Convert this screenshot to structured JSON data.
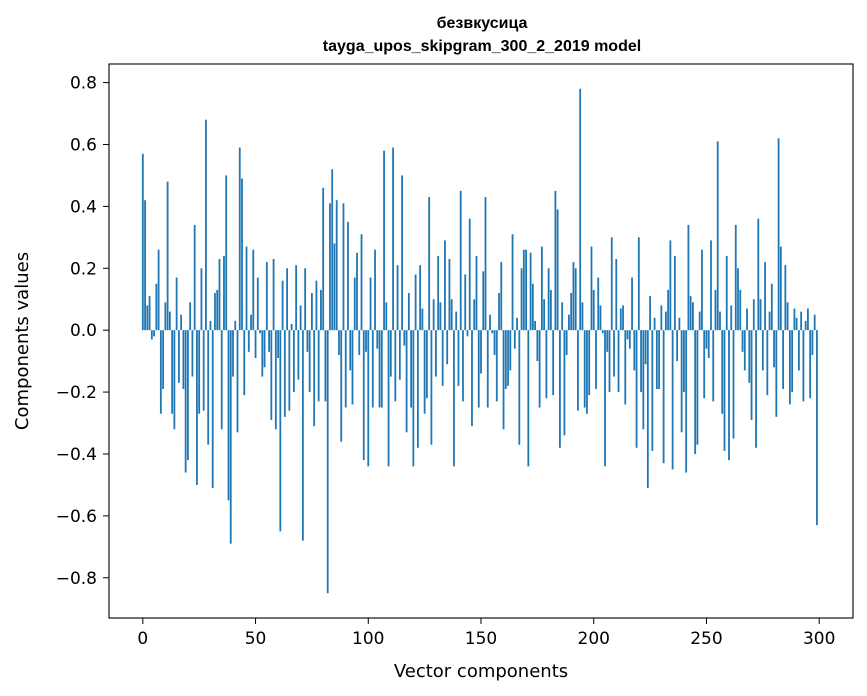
{
  "chart_data": {
    "type": "bar",
    "title": "безвкусица",
    "subtitle": "tayga_upos_skipgram_300_2_2019 model",
    "xlabel": "Vector components",
    "ylabel": "Components values",
    "xlim": [
      -15,
      315
    ],
    "ylim": [
      -0.93,
      0.86
    ],
    "xticks": [
      0,
      50,
      100,
      150,
      200,
      250,
      300
    ],
    "yticks": [
      -0.8,
      -0.6,
      -0.4,
      -0.2,
      0.0,
      0.2,
      0.4,
      0.6,
      0.8
    ],
    "xtick_labels": [
      "0",
      "50",
      "100",
      "150",
      "200",
      "250",
      "300"
    ],
    "ytick_labels": [
      "−0.8",
      "−0.6",
      "−0.4",
      "−0.2",
      "0.0",
      "0.2",
      "0.4",
      "0.6",
      "0.8"
    ],
    "grid": false,
    "bar_color": "#1f77b4",
    "values": [
      0.57,
      0.42,
      0.08,
      0.11,
      -0.03,
      -0.02,
      0.15,
      0.26,
      -0.27,
      -0.19,
      0.09,
      0.48,
      0.06,
      -0.27,
      -0.32,
      0.17,
      -0.17,
      0.05,
      -0.19,
      -0.46,
      -0.42,
      0.09,
      -0.15,
      0.34,
      -0.5,
      -0.27,
      0.2,
      -0.26,
      0.68,
      -0.37,
      0.03,
      -0.51,
      0.12,
      0.13,
      0.23,
      -0.32,
      0.24,
      0.5,
      -0.55,
      -0.69,
      -0.15,
      0.03,
      -0.33,
      0.59,
      0.49,
      -0.21,
      0.27,
      -0.07,
      0.05,
      0.26,
      -0.09,
      0.17,
      -0.01,
      -0.15,
      -0.12,
      0.22,
      -0.07,
      -0.29,
      0.23,
      -0.32,
      -0.09,
      -0.65,
      0.16,
      -0.28,
      0.2,
      -0.26,
      0.02,
      -0.2,
      0.21,
      -0.16,
      0.08,
      -0.68,
      0.2,
      -0.07,
      -0.2,
      0.12,
      -0.31,
      0.16,
      -0.23,
      0.13,
      0.46,
      -0.23,
      -0.85,
      0.41,
      0.52,
      0.28,
      0.42,
      -0.08,
      -0.36,
      0.41,
      -0.25,
      0.35,
      -0.13,
      -0.24,
      0.17,
      0.25,
      -0.08,
      0.31,
      -0.42,
      -0.07,
      -0.44,
      0.17,
      -0.25,
      0.26,
      -0.06,
      -0.25,
      -0.25,
      0.58,
      0.09,
      -0.44,
      -0.15,
      0.59,
      -0.23,
      0.21,
      -0.16,
      0.5,
      -0.05,
      -0.33,
      0.12,
      -0.25,
      -0.44,
      0.18,
      -0.38,
      0.21,
      0.07,
      -0.27,
      -0.22,
      0.43,
      -0.37,
      0.1,
      -0.15,
      0.24,
      0.09,
      -0.18,
      0.29,
      -0.11,
      0.23,
      0.1,
      -0.44,
      0.06,
      -0.18,
      0.45,
      -0.23,
      0.18,
      -0.02,
      0.36,
      -0.31,
      0.1,
      0.24,
      -0.25,
      -0.14,
      0.19,
      0.43,
      -0.25,
      0.05,
      -0.01,
      -0.08,
      -0.23,
      0.12,
      0.22,
      -0.32,
      -0.19,
      -0.18,
      -0.13,
      0.31,
      -0.06,
      0.04,
      -0.37,
      0.2,
      0.26,
      0.26,
      -0.44,
      0.25,
      0.15,
      0.03,
      -0.1,
      -0.25,
      0.27,
      0.1,
      -0.22,
      0.2,
      0.13,
      -0.21,
      0.45,
      0.39,
      -0.38,
      0.09,
      -0.34,
      -0.08,
      0.05,
      0.12,
      0.22,
      0.2,
      -0.26,
      0.78,
      0.09,
      -0.25,
      -0.27,
      -0.21,
      0.27,
      0.13,
      -0.19,
      0.17,
      0.08,
      -0.01,
      -0.44,
      -0.07,
      -0.2,
      0.3,
      -0.15,
      0.23,
      -0.2,
      0.07,
      0.08,
      -0.24,
      -0.03,
      -0.06,
      0.17,
      -0.13,
      -0.38,
      0.3,
      -0.2,
      -0.32,
      -0.11,
      -0.51,
      0.11,
      -0.39,
      0.04,
      -0.19,
      -0.19,
      0.08,
      -0.43,
      0.06,
      0.13,
      0.29,
      -0.45,
      0.24,
      -0.1,
      0.04,
      -0.33,
      -0.2,
      -0.46,
      0.34,
      0.11,
      0.09,
      -0.4,
      -0.37,
      0.06,
      0.26,
      -0.22,
      -0.06,
      -0.09,
      0.29,
      -0.23,
      0.13,
      0.61,
      0.06,
      -0.27,
      -0.39,
      0.24,
      -0.42,
      0.08,
      -0.35,
      0.34,
      0.2,
      0.13,
      -0.07,
      -0.13,
      0.07,
      -0.17,
      -0.29,
      0.1,
      -0.38,
      0.36,
      0.1,
      -0.13,
      0.22,
      -0.21,
      0.06,
      0.15,
      -0.12,
      -0.28,
      0.62,
      0.27,
      -0.19,
      0.21,
      0.09,
      -0.24,
      -0.2,
      0.07,
      0.04,
      -0.13,
      0.06,
      -0.23,
      0.03,
      0.07,
      -0.22,
      -0.08,
      0.05,
      -0.63
    ]
  }
}
